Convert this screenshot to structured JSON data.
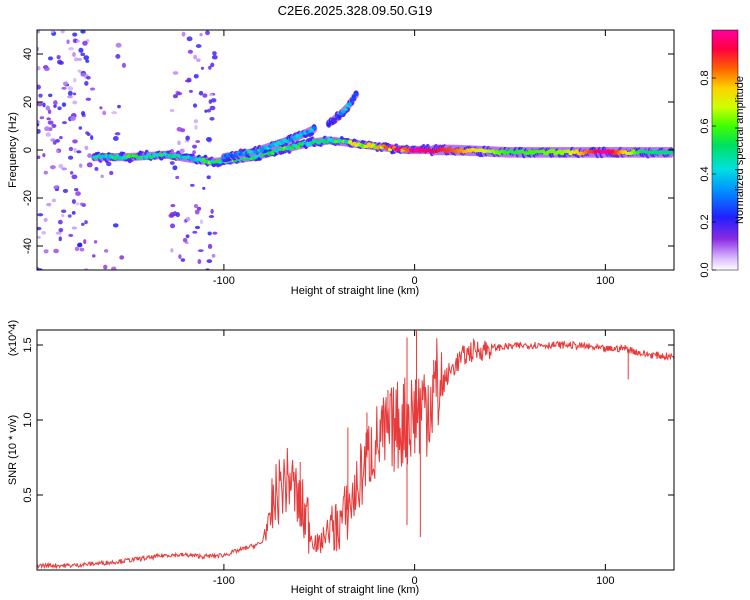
{
  "title": "C2E6.2025.328.09.50.G19",
  "colors": {
    "snr_line": "#e83a3a",
    "track_dim": "#7b2fe0",
    "noise": "#8a3cf0"
  },
  "chart_data": [
    {
      "type": "heatmap",
      "title": "C2E6.2025.328.09.50.G19",
      "xlabel": "Height of straight line (km)",
      "ylabel": "Frequency (Hz)",
      "xlim": [
        -198,
        136
      ],
      "ylim": [
        -50,
        50
      ],
      "xticks": [
        -100,
        0,
        100
      ],
      "yticks": [
        -40,
        -20,
        0,
        20,
        40
      ],
      "colorbar": {
        "label": "Normalized spectral amplitude",
        "range": [
          0,
          1
        ],
        "ticks": [
          "0.0",
          "0.2",
          "0.4",
          "0.6",
          "0.8"
        ],
        "tick_values": [
          0.0,
          0.2,
          0.4,
          0.6,
          0.8
        ],
        "colormap": "rainbow (purple-blue-cyan-green-yellow-red-magenta)"
      },
      "series": [
        {
          "name": "main carrier track (frequency vs height)",
          "x": [
            -168,
            -150,
            -130,
            -115,
            -105,
            -95,
            -85,
            -75,
            -65,
            -55,
            -45,
            -35,
            -25,
            -15,
            -5,
            0,
            20,
            50,
            80,
            100,
            120,
            135
          ],
          "y": [
            -3,
            -3,
            -2,
            -4,
            -5,
            -4,
            -3,
            -1,
            1,
            3,
            4,
            3,
            2,
            1,
            0,
            0,
            0,
            -1,
            -1,
            -1,
            -1,
            -1
          ],
          "amplitude": [
            0.45,
            0.5,
            0.5,
            0.45,
            0.55,
            0.55,
            0.5,
            0.5,
            0.55,
            0.45,
            0.45,
            0.6,
            0.75,
            0.85,
            0.95,
            1.0,
            0.85,
            0.55,
            0.65,
            1.0,
            0.5,
            0.5
          ]
        },
        {
          "name": "secondary branch",
          "x": [
            -100,
            -85,
            -70,
            -60,
            -52
          ],
          "y": [
            -3,
            -1,
            3,
            6,
            9
          ],
          "amplitude": [
            0.3,
            0.4,
            0.4,
            0.4,
            0.35
          ]
        },
        {
          "name": "rising echo",
          "x": [
            -45,
            -40,
            -35,
            -30
          ],
          "y": [
            11,
            14,
            18,
            24
          ],
          "amplitude": [
            0.2,
            0.25,
            0.4,
            0.2
          ]
        }
      ]
    },
    {
      "type": "line",
      "xlabel": "Height of straight line (km)",
      "ylabel": "SNR (10 * v/v)",
      "y_multiplier": "(x10^4)",
      "xlim": [
        -198,
        136
      ],
      "ylim": [
        0,
        1.6
      ],
      "xticks": [
        -100,
        0,
        100
      ],
      "yticks": [
        "0.5",
        "1.0",
        "1.5"
      ],
      "ytick_values": [
        0.5,
        1.0,
        1.5
      ],
      "series": [
        {
          "name": "SNR",
          "x": [
            -198,
            -180,
            -160,
            -140,
            -130,
            -120,
            -110,
            -100,
            -90,
            -80,
            -75,
            -70,
            -65,
            -60,
            -55,
            -50,
            -45,
            -40,
            -35,
            -30,
            -25,
            -20,
            -15,
            -10,
            -5,
            0,
            5,
            10,
            15,
            20,
            25,
            30,
            40,
            50,
            60,
            70,
            80,
            90,
            100,
            110,
            120,
            136
          ],
          "y": [
            0.03,
            0.03,
            0.05,
            0.08,
            0.1,
            0.1,
            0.09,
            0.1,
            0.14,
            0.18,
            0.3,
            0.45,
            0.5,
            0.3,
            0.2,
            0.12,
            0.25,
            0.3,
            0.4,
            0.55,
            0.75,
            0.85,
            0.9,
            0.95,
            1.0,
            1.05,
            1.1,
            1.18,
            1.25,
            1.35,
            1.42,
            1.46,
            1.48,
            1.49,
            1.5,
            1.5,
            1.5,
            1.49,
            1.47,
            1.48,
            1.44,
            1.42
          ],
          "peak_markers": [
            {
              "x": -60,
              "y": 0.72
            },
            {
              "x": -35,
              "y": 0.95
            },
            {
              "x": -25,
              "y": 1.05
            },
            {
              "x": -14,
              "y": 1.2
            },
            {
              "x": -4,
              "y": 1.55
            },
            {
              "x": 1,
              "y": 1.65
            },
            {
              "x": 10,
              "y": 1.4
            }
          ],
          "dip_markers": [
            {
              "x": -4,
              "y": 0.3
            },
            {
              "x": 3,
              "y": 0.22
            },
            {
              "x": 112,
              "y": 1.27
            }
          ]
        }
      ]
    }
  ]
}
